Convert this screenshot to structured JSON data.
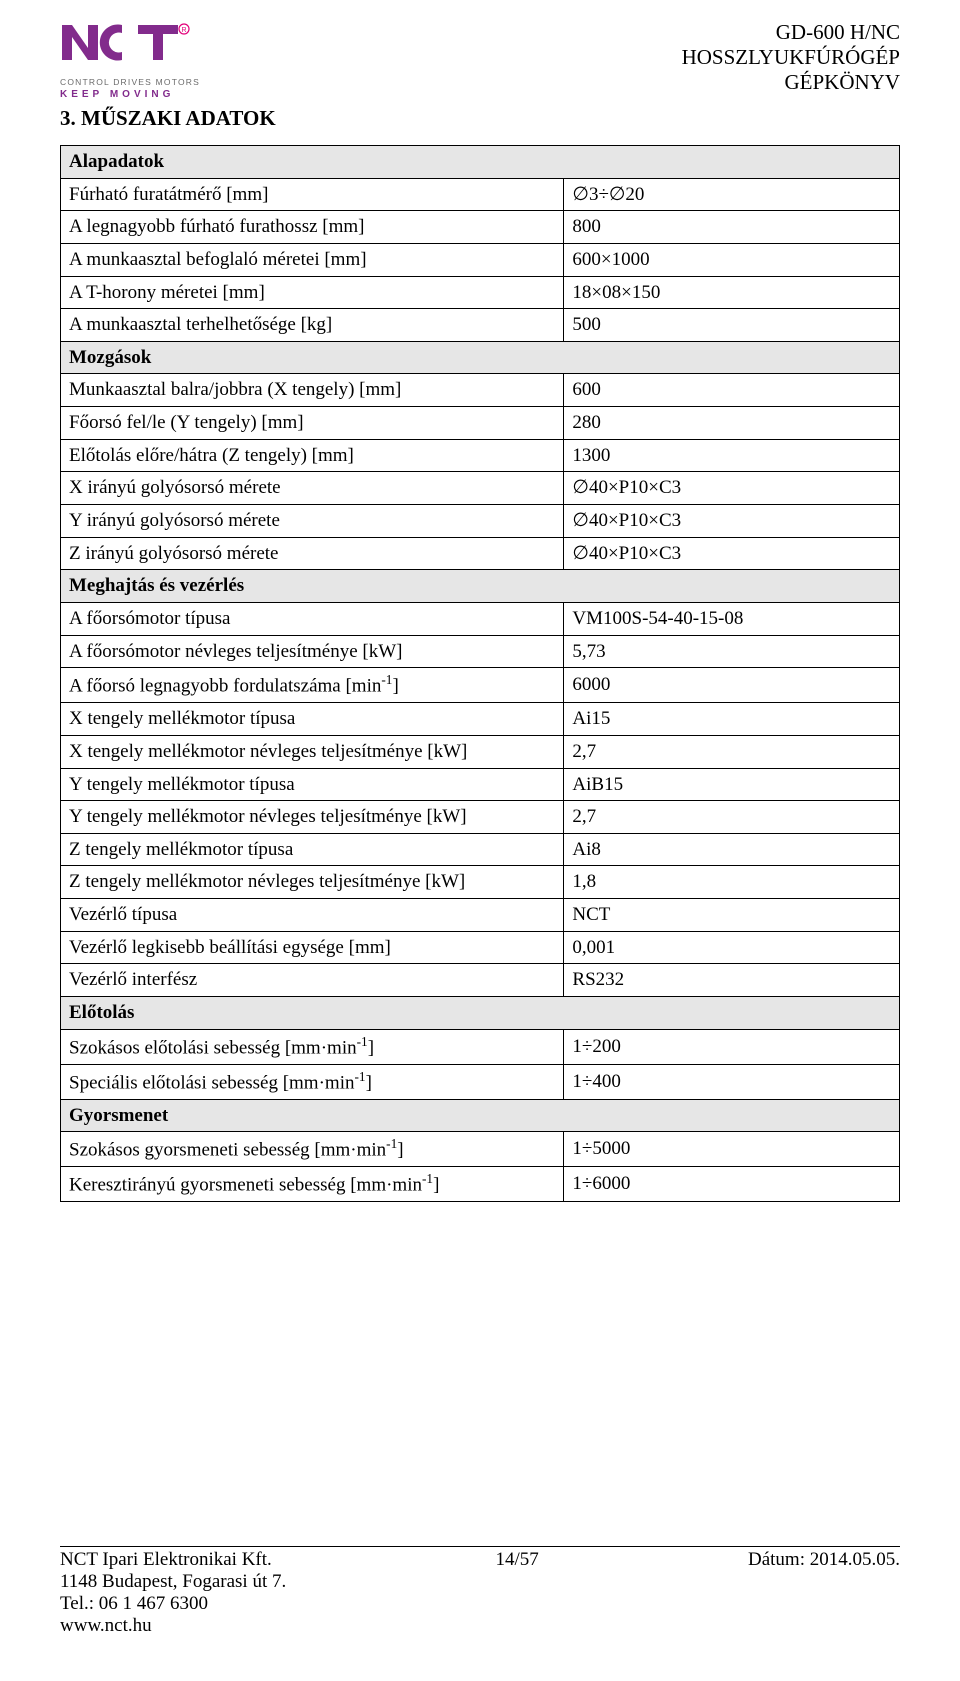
{
  "header": {
    "logo_tagline": "CONTROL DRIVES MOTORS",
    "logo_keep": "KEEP MOVING",
    "meta1": "GD-600 H/NC",
    "meta2": "HOSSZLYUKFÚRÓGÉP",
    "meta3": "GÉPKÖNYV"
  },
  "section_title": "3. MŰSZAKI ADATOK",
  "colors": {
    "brand": "#822b8c",
    "reg": "#e2007a",
    "section_bg": "#e6e6e6",
    "border": "#000000",
    "text": "#000000",
    "bg": "#ffffff",
    "tagline": "#6b6b6b"
  },
  "table": [
    {
      "type": "section",
      "label": "Alapadatok"
    },
    {
      "type": "row",
      "label": "Fúrható furatátmérő [mm]",
      "value": "∅3÷∅20"
    },
    {
      "type": "row",
      "label": "A legnagyobb fúrható furathossz [mm]",
      "value": "800"
    },
    {
      "type": "row",
      "label": "A munkaasztal befoglaló méretei [mm]",
      "value": "600×1000"
    },
    {
      "type": "row",
      "label": "A T-horony méretei [mm]",
      "value": "18×08×150"
    },
    {
      "type": "row",
      "label": "A munkaasztal terhelhetősége [kg]",
      "value": "500"
    },
    {
      "type": "section",
      "label": "Mozgások"
    },
    {
      "type": "row",
      "label": "Munkaasztal balra/jobbra (X tengely) [mm]",
      "value": "600"
    },
    {
      "type": "row",
      "label": "Főorsó fel/le (Y tengely) [mm]",
      "value": "280"
    },
    {
      "type": "row",
      "label": "Előtolás előre/hátra (Z tengely) [mm]",
      "value": "1300"
    },
    {
      "type": "row",
      "label": "X irányú golyósorsó mérete",
      "value": "∅40×P10×C3"
    },
    {
      "type": "row",
      "label": "Y irányú golyósorsó mérete",
      "value": "∅40×P10×C3"
    },
    {
      "type": "row",
      "label": "Z irányú golyósorsó mérete",
      "value": "∅40×P10×C3"
    },
    {
      "type": "section",
      "label": "Meghajtás és vezérlés"
    },
    {
      "type": "row",
      "label": "A főorsómotor típusa",
      "value": "VM100S-54-40-15-08"
    },
    {
      "type": "row",
      "label": "A főorsómotor névleges teljesítménye [kW]",
      "value": "5,73"
    },
    {
      "type": "row",
      "label_html": "A főorsó legnagyobb fordulatszáma [min<sup>-1</sup>]",
      "value": "6000"
    },
    {
      "type": "row",
      "label": "X tengely mellékmotor típusa",
      "value": "Ai15"
    },
    {
      "type": "row",
      "label": "X tengely mellékmotor névleges teljesítménye [kW]",
      "value": "2,7"
    },
    {
      "type": "row",
      "label": "Y tengely mellékmotor típusa",
      "value": "AiB15"
    },
    {
      "type": "row",
      "label": "Y tengely mellékmotor névleges teljesítménye [kW]",
      "value": "2,7"
    },
    {
      "type": "row",
      "label": "Z tengely mellékmotor típusa",
      "value": "Ai8"
    },
    {
      "type": "row",
      "label": "Z tengely mellékmotor névleges teljesítménye [kW]",
      "value": "1,8"
    },
    {
      "type": "row",
      "label": "Vezérlő típusa",
      "value": "NCT"
    },
    {
      "type": "row",
      "label": "Vezérlő legkisebb beállítási egysége [mm]",
      "value": "0,001"
    },
    {
      "type": "row",
      "label": "Vezérlő interfész",
      "value": "RS232"
    },
    {
      "type": "section",
      "label": "Előtolás"
    },
    {
      "type": "row",
      "label_html": "Szokásos előtolási sebesség [mm·min<sup>-1</sup>]",
      "value": "1÷200"
    },
    {
      "type": "row",
      "label_html": "Speciális előtolási sebesség [mm·min<sup>-1</sup>]",
      "value": "1÷400"
    },
    {
      "type": "section",
      "label": "Gyorsmenet"
    },
    {
      "type": "row",
      "label_html": "Szokásos gyorsmeneti sebesség [mm·min<sup>-1</sup>]",
      "value": "1÷5000"
    },
    {
      "type": "row",
      "label_html": "Keresztirányú gyorsmeneti sebesség [mm·min<sup>-1</sup>]",
      "value": "1÷6000"
    }
  ],
  "footer": {
    "company": "NCT Ipari Elektronikai Kft.",
    "address": "1148 Budapest, Fogarasi út 7.",
    "tel": "Tel.: 06 1 467 6300",
    "web": "www.nct.hu",
    "page": "14/57",
    "date": "Dátum: 2014.05.05."
  }
}
